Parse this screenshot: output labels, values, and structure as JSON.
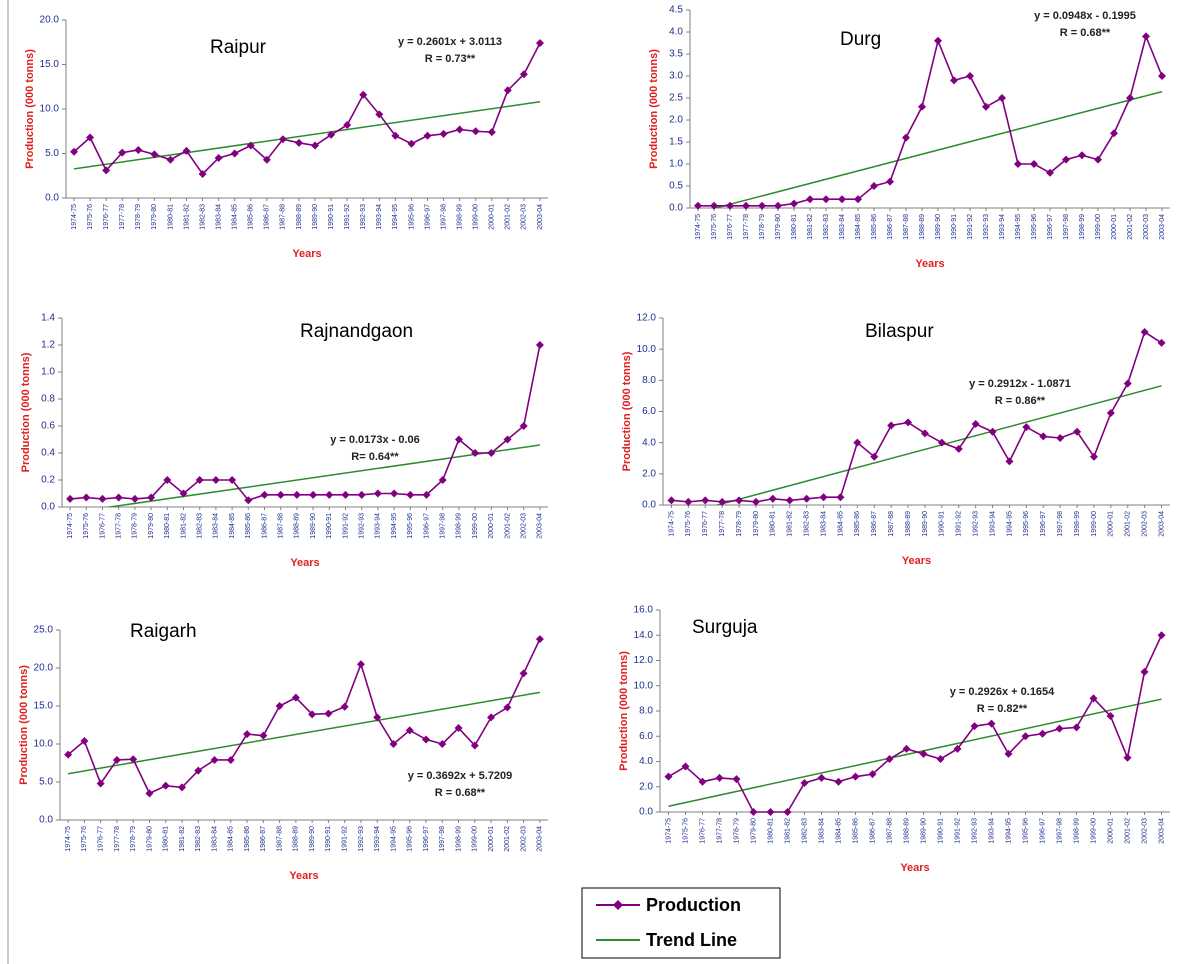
{
  "chart_data": [
    {
      "type": "line",
      "title": "Raipur",
      "ylabel": "Production (000 tonns)",
      "xlabel": "Years",
      "categories": [
        "1974-75",
        "1975-76",
        "1976-77",
        "1977-78",
        "1978-79",
        "1979-80",
        "1980-81",
        "1981-82",
        "1982-83",
        "1983-84",
        "1984-85",
        "1985-86",
        "1986-87",
        "1987-88",
        "1988-89",
        "1989-90",
        "1990-91",
        "1991-92",
        "1992-93",
        "1993-94",
        "1994-95",
        "1995-96",
        "1996-97",
        "1997-98",
        "1998-99",
        "1999-00",
        "2000-01",
        "2001-02",
        "2002-03",
        "2003-04"
      ],
      "series": [
        {
          "color": "#800080",
          "values": [
            5.2,
            6.8,
            3.1,
            5.1,
            5.4,
            4.9,
            4.3,
            5.3,
            2.7,
            4.5,
            5.0,
            5.9,
            4.3,
            6.6,
            6.2,
            5.9,
            7.1,
            8.2,
            11.6,
            9.4,
            7.0,
            6.1,
            7.0,
            7.2,
            7.7,
            7.5,
            7.4,
            12.1,
            13.9,
            17.4
          ]
        }
      ],
      "trend": {
        "color": "#2e8b2e",
        "slope": 0.2601,
        "intercept": 3.0113,
        "equation": "y = 0.2601x + 3.0113",
        "r": "R = 0.73**"
      },
      "ylim": [
        0,
        20
      ],
      "yticks": [
        {
          "value": 0,
          "label": "0.0"
        },
        {
          "value": 5,
          "label": "5.0"
        },
        {
          "value": 10,
          "label": "10.0"
        },
        {
          "value": 15,
          "label": "15.0"
        },
        {
          "value": 20,
          "label": "20.0"
        }
      ]
    },
    {
      "type": "line",
      "title": "Durg",
      "ylabel": "Production (000 tonns)",
      "xlabel": "Years",
      "categories": [
        "1974-75",
        "1975-76",
        "1976-77",
        "1977-78",
        "1978-79",
        "1979-80",
        "1980-81",
        "1981-82",
        "1982-83",
        "1983-84",
        "1984-85",
        "1985-86",
        "1986-87",
        "1987-88",
        "1988-89",
        "1989-90",
        "1990-91",
        "1991-92",
        "1992-93",
        "1993-94",
        "1994-95",
        "1995-96",
        "1996-97",
        "1997-98",
        "1998-99",
        "1999-00",
        "2000-01",
        "2001-02",
        "2002-03",
        "2003-04"
      ],
      "series": [
        {
          "color": "#800080",
          "values": [
            0.05,
            0.05,
            0.05,
            0.05,
            0.05,
            0.05,
            0.1,
            0.2,
            0.2,
            0.2,
            0.2,
            0.5,
            0.6,
            1.6,
            2.3,
            3.8,
            2.9,
            3.0,
            2.3,
            2.5,
            1.0,
            1.0,
            0.8,
            1.1,
            1.2,
            1.1,
            1.7,
            2.5,
            3.9,
            3.0
          ]
        }
      ],
      "trend": {
        "color": "#2e8b2e",
        "slope": 0.0948,
        "intercept": -0.1995,
        "equation": "y = 0.0948x - 0.1995",
        "r": "R = 0.68**"
      },
      "ylim": [
        0,
        4.5
      ],
      "yticks": [
        {
          "value": 0,
          "label": "0.0"
        },
        0.5,
        {
          "value": 1,
          "label": "1.0"
        },
        1.5,
        {
          "value": 2,
          "label": "2.0"
        },
        2.5,
        {
          "value": 3,
          "label": "3.0"
        },
        3.5,
        {
          "value": 4,
          "label": "4.0"
        },
        4.5
      ]
    },
    {
      "type": "line",
      "title": "Rajnandgaon",
      "ylabel": "Production (000 tonns)",
      "xlabel": "Years",
      "categories": [
        "1974-75",
        "1975-76",
        "1976-77",
        "1977-78",
        "1978-79",
        "1979-80",
        "1980-81",
        "1981-82",
        "1982-83",
        "1983-84",
        "1984-85",
        "1985-86",
        "1986-87",
        "1987-88",
        "1988-89",
        "1989-90",
        "1990-91",
        "1991-92",
        "1992-93",
        "1993-94",
        "1994-95",
        "1995-96",
        "1996-97",
        "1997-98",
        "1998-99",
        "1999-00",
        "2000-01",
        "2001-02",
        "2002-03",
        "2003-04"
      ],
      "series": [
        {
          "color": "#800080",
          "values": [
            0.06,
            0.07,
            0.06,
            0.07,
            0.06,
            0.07,
            0.2,
            0.1,
            0.2,
            0.2,
            0.2,
            0.05,
            0.09,
            0.09,
            0.09,
            0.09,
            0.09,
            0.09,
            0.09,
            0.1,
            0.1,
            0.09,
            0.09,
            0.2,
            0.5,
            0.4,
            0.4,
            0.5,
            0.6,
            1.2
          ]
        }
      ],
      "trend": {
        "color": "#2e8b2e",
        "slope": 0.0173,
        "intercept": -0.06,
        "equation": "y = 0.0173x - 0.06",
        "r": "R= 0.64**"
      },
      "ylim": [
        0,
        1.4
      ],
      "yticks": [
        {
          "value": 0,
          "label": "0.0"
        },
        0.2,
        0.4,
        0.6,
        0.8,
        {
          "value": 1,
          "label": "1.0"
        },
        1.2,
        1.4
      ]
    },
    {
      "type": "line",
      "title": "Bilaspur",
      "ylabel": "Production (000 tonns)",
      "xlabel": "Years",
      "categories": [
        "1974-75",
        "1975-76",
        "1976-77",
        "1977-78",
        "1978-79",
        "1979-80",
        "1980-81",
        "1981-82",
        "1982-83",
        "1983-84",
        "1984-85",
        "1985-86",
        "1986-87",
        "1987-88",
        "1988-89",
        "1989-90",
        "1990-91",
        "1991-92",
        "1992-93",
        "1993-94",
        "1994-95",
        "1995-96",
        "1996-97",
        "1997-98",
        "1998-99",
        "1999-00",
        "2000-01",
        "2001-02",
        "2002-03",
        "2003-04"
      ],
      "series": [
        {
          "color": "#800080",
          "values": [
            0.3,
            0.2,
            0.3,
            0.2,
            0.3,
            0.2,
            0.4,
            0.3,
            0.4,
            0.5,
            0.5,
            4.0,
            3.1,
            5.1,
            5.3,
            4.6,
            4.0,
            3.6,
            5.2,
            4.7,
            2.8,
            5.0,
            4.4,
            4.3,
            4.7,
            3.1,
            5.9,
            7.8,
            11.1,
            10.4
          ]
        }
      ],
      "trend": {
        "color": "#2e8b2e",
        "slope": 0.2912,
        "intercept": -1.0871,
        "equation": "y = 0.2912x - 1.0871",
        "r": "R = 0.86**"
      },
      "ylim": [
        0,
        12
      ],
      "yticks": [
        {
          "value": 0,
          "label": "0.0"
        },
        {
          "value": 2,
          "label": "2.0"
        },
        {
          "value": 4,
          "label": "4.0"
        },
        {
          "value": 6,
          "label": "6.0"
        },
        {
          "value": 8,
          "label": "8.0"
        },
        {
          "value": 10,
          "label": "10.0"
        },
        {
          "value": 12,
          "label": "12.0"
        }
      ]
    },
    {
      "type": "line",
      "title": "Raigarh",
      "ylabel": "Production (000 tonns)",
      "xlabel": "Years",
      "categories": [
        "1974-75",
        "1975-76",
        "1976-77",
        "1977-78",
        "1978-79",
        "1979-80",
        "1980-81",
        "1981-82",
        "1982-83",
        "1983-84",
        "1984-85",
        "1985-86",
        "1986-87",
        "1987-88",
        "1988-89",
        "1989-90",
        "1990-91",
        "1991-92",
        "1992-93",
        "1993-94",
        "1994-95",
        "1995-96",
        "1996-97",
        "1997-98",
        "1998-99",
        "1999-00",
        "2000-01",
        "2001-02",
        "2002-03",
        "2003-04"
      ],
      "series": [
        {
          "color": "#800080",
          "values": [
            8.6,
            10.4,
            4.8,
            7.9,
            8.0,
            3.5,
            4.5,
            4.3,
            6.5,
            7.9,
            7.9,
            11.3,
            11.1,
            15.0,
            16.1,
            13.9,
            14.0,
            14.9,
            20.5,
            13.5,
            10.0,
            11.8,
            10.6,
            10.0,
            12.1,
            9.8,
            13.5,
            14.8,
            19.3,
            23.8
          ]
        }
      ],
      "trend": {
        "color": "#2e8b2e",
        "slope": 0.3692,
        "intercept": 5.7209,
        "equation": "y = 0.3692x + 5.7209",
        "r": "R = 0.68**"
      },
      "ylim": [
        0,
        25
      ],
      "yticks": [
        {
          "value": 0,
          "label": "0.0"
        },
        {
          "value": 5,
          "label": "5.0"
        },
        {
          "value": 10,
          "label": "10.0"
        },
        {
          "value": 15,
          "label": "15.0"
        },
        {
          "value": 20,
          "label": "20.0"
        },
        {
          "value": 25,
          "label": "25.0"
        }
      ]
    },
    {
      "type": "line",
      "title": "Surguja",
      "ylabel": "Production (000 tonns)",
      "xlabel": "Years",
      "categories": [
        "1974-75",
        "1975-76",
        "1976-77",
        "1977-78",
        "1978-79",
        "1979-80",
        "1980-81",
        "1981-82",
        "1982-83",
        "1983-84",
        "1984-85",
        "1985-86",
        "1986-87",
        "1987-88",
        "1988-89",
        "1989-90",
        "1990-91",
        "1991-92",
        "1992-93",
        "1993-94",
        "1994-95",
        "1995-96",
        "1996-97",
        "1997-98",
        "1998-99",
        "1999-00",
        "2000-01",
        "2001-02",
        "2002-03",
        "2003-04"
      ],
      "series": [
        {
          "color": "#800080",
          "values": [
            2.8,
            3.6,
            2.4,
            2.7,
            2.6,
            0,
            0,
            0,
            2.3,
            2.7,
            2.4,
            2.8,
            3.0,
            4.2,
            5.0,
            4.6,
            4.2,
            5.0,
            6.8,
            7.0,
            4.6,
            6.0,
            6.2,
            6.6,
            6.7,
            9.0,
            7.6,
            4.3,
            11.1,
            14.0
          ]
        }
      ],
      "trend": {
        "color": "#2e8b2e",
        "slope": 0.2926,
        "intercept": 0.1654,
        "equation": "y = 0.2926x + 0.1654",
        "r": "R = 0.82**"
      },
      "ylim": [
        0,
        16
      ],
      "yticks": [
        {
          "value": 0,
          "label": "0.0"
        },
        {
          "value": 2,
          "label": "2.0"
        },
        {
          "value": 4,
          "label": "4.0"
        },
        {
          "value": 6,
          "label": "6.0"
        },
        {
          "value": 8,
          "label": "8.0"
        },
        {
          "value": 10,
          "label": "10.0"
        },
        {
          "value": 12,
          "label": "12.0"
        },
        {
          "value": 14,
          "label": "14.0"
        },
        {
          "value": 16,
          "label": "16.0"
        }
      ]
    }
  ],
  "legend": [
    {
      "name": "Production",
      "color": "#800080"
    },
    {
      "name": "Trend Line",
      "color": "#2e8b2e"
    }
  ]
}
